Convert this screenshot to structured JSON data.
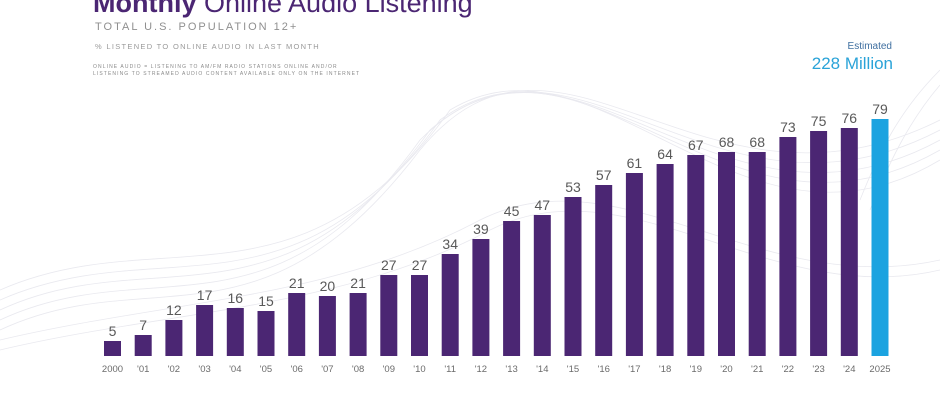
{
  "header": {
    "title_bold": "Monthly",
    "title_rest": " Online Audio Listening",
    "subtitle": "TOTAL U.S. POPULATION 12+",
    "metric": "% LISTENED TO ONLINE AUDIO IN LAST MONTH",
    "note_line1": "ONLINE AUDIO = LISTENING TO AM/FM RADIO STATIONS ONLINE AND/OR",
    "note_line2": "LISTENING TO STREAMED AUDIO CONTENT AVAILABLE ONLY ON THE INTERNET"
  },
  "estimate": {
    "label": "Estimated",
    "value": "228 Million"
  },
  "colors": {
    "bar": "#4b2673",
    "highlight_bar": "#1ba3e0",
    "title": "#4b2673",
    "estimate": "#2aa3d8"
  },
  "chart_data": {
    "type": "bar",
    "title": "Monthly Online Audio Listening",
    "subtitle": "Total U.S. Population 12+",
    "xlabel": "",
    "ylabel": "% listened to online audio in last month",
    "ylim": [
      0,
      80
    ],
    "grid": false,
    "legend": "none",
    "categories": [
      "2000",
      "'01",
      "'02",
      "'03",
      "'04",
      "'05",
      "'06",
      "'07",
      "'08",
      "'09",
      "'10",
      "'11",
      "'12",
      "'13",
      "'14",
      "'15",
      "'16",
      "'17",
      "'18",
      "'19",
      "'20",
      "'21",
      "'22",
      "'23",
      "'24",
      "2025"
    ],
    "values": [
      5,
      7,
      12,
      17,
      16,
      15,
      21,
      20,
      21,
      27,
      27,
      34,
      39,
      45,
      47,
      53,
      57,
      61,
      64,
      67,
      68,
      68,
      73,
      75,
      76,
      79
    ],
    "highlight_index": 25,
    "annotations": [
      "Estimated 228 Million"
    ]
  }
}
